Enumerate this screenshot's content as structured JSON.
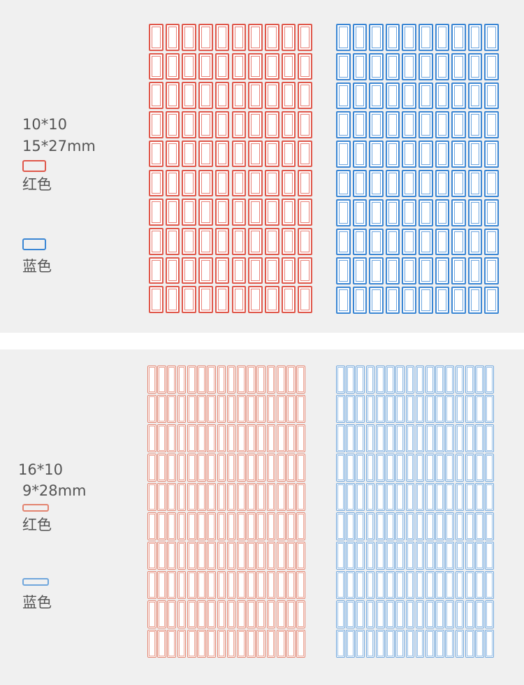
{
  "products": [
    {
      "layout": "10*10",
      "size": "15*27mm",
      "variants": [
        {
          "label": "红色",
          "color": "#e0574a"
        },
        {
          "label": "蓝色",
          "color": "#3a86d4"
        }
      ],
      "grid": {
        "columns": 10,
        "rows": 10
      }
    },
    {
      "layout": "16*10",
      "size": "9*28mm",
      "variants": [
        {
          "label": "红色",
          "color": "#e3836f"
        },
        {
          "label": "蓝色",
          "color": "#6fa6dc"
        }
      ],
      "grid": {
        "columns": 16,
        "rows": 10
      }
    }
  ]
}
